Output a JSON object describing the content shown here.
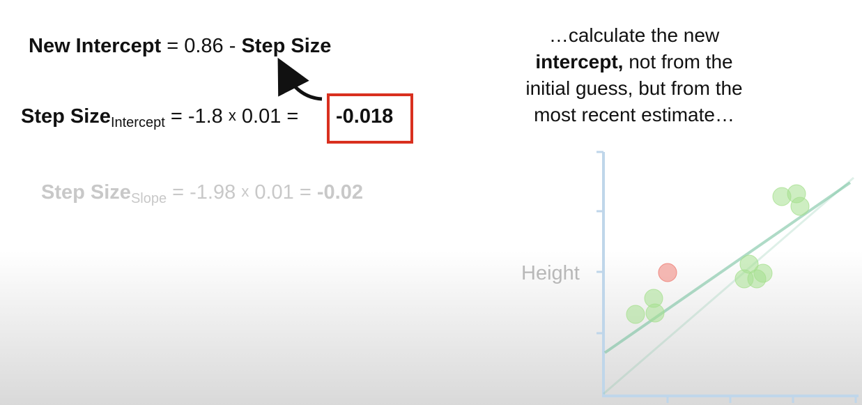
{
  "eq_new_intercept": {
    "lhs": "New Intercept",
    "op": "= 0.86 -",
    "rhs": "Step Size"
  },
  "eq_step_intercept": {
    "label": "Step Size",
    "sub": "Intercept",
    "mid1": " = -1.8 ",
    "times": "x",
    "mid2": " 0.01 = ",
    "result": "-0.018"
  },
  "eq_step_slope": {
    "label": "Step Size",
    "sub": "Slope",
    "mid1": " = -1.98 ",
    "times": "x",
    "mid2": " 0.01 = ",
    "result": "-0.02"
  },
  "caption": {
    "line1": "…calculate the new",
    "bold": "intercept,",
    "line2_rest": " not from the",
    "line3": "initial guess, but from the",
    "line4": "most recent estimate…"
  },
  "plot": {
    "y_axis_label": "Height",
    "axis_color": "#bfd6ea",
    "point_color": "#a6e08f",
    "outlier_color": "#f08a82",
    "line_color": "#6fbf9a"
  }
}
